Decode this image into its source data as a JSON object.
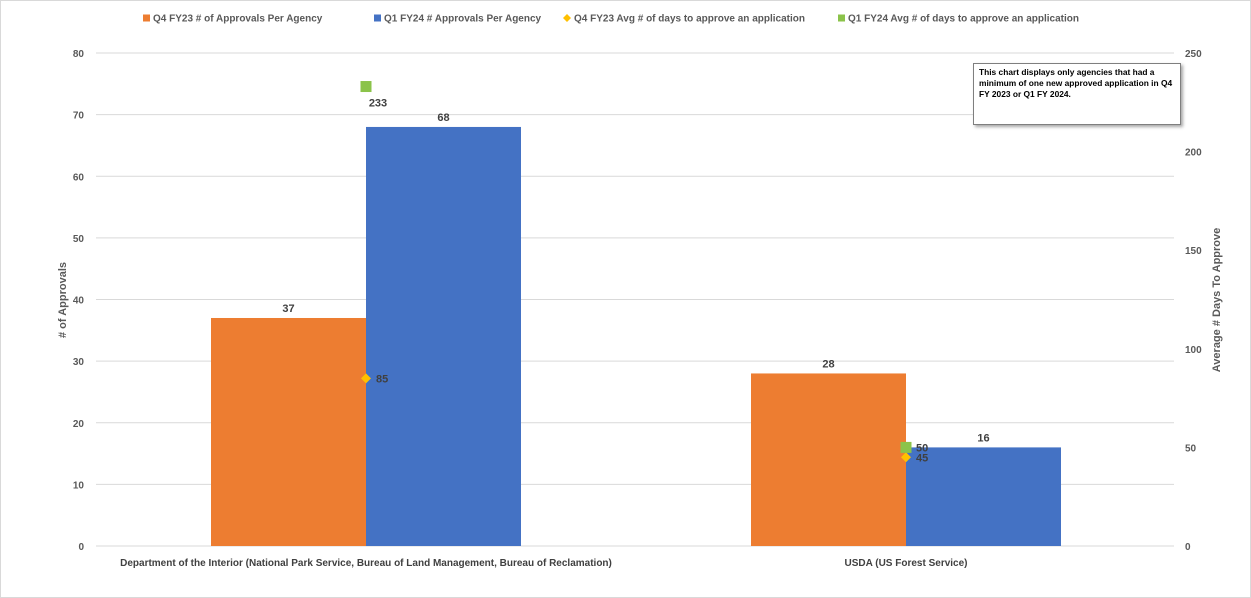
{
  "chart_data": {
    "type": "bar",
    "categories": [
      "Department of the Interior (National Park Service, Bureau of Land Management, Bureau of Reclamation)",
      "USDA (US Forest Service)"
    ],
    "series": [
      {
        "name": "Q4 FY23 #  of Approvals Per Agency",
        "kind": "bar",
        "axis": "left",
        "values": [
          37,
          28
        ],
        "color": "#ED7D31"
      },
      {
        "name": "Q1 FY24 # Approvals Per Agency",
        "kind": "bar",
        "axis": "left",
        "values": [
          68,
          16
        ],
        "color": "#4472C4"
      },
      {
        "name": "Q4 FY23 Avg # of days to approve an application",
        "kind": "marker",
        "marker": "diamond",
        "axis": "right",
        "values": [
          85,
          45
        ],
        "color": "#FFC000"
      },
      {
        "name": "Q1 FY24 Avg # of days to approve an application",
        "kind": "marker",
        "marker": "square",
        "axis": "right",
        "values": [
          233,
          50
        ],
        "color": "#8BC34A"
      }
    ],
    "ylabel": "# of Approvals",
    "ylim": [
      0,
      80
    ],
    "yticks": [
      "0",
      "10",
      "20",
      "30",
      "40",
      "50",
      "60",
      "70",
      "80"
    ],
    "y2label": "Average # Days To Approve",
    "y2lim": [
      0,
      250
    ],
    "y2ticks": [
      "0",
      "50",
      "100",
      "150",
      "200",
      "250"
    ],
    "grid": true,
    "legend_position": "top",
    "note": "This chart displays only agencies that had a minimum of one new approved application in Q4 FY 2023 or Q1 FY 2024."
  }
}
